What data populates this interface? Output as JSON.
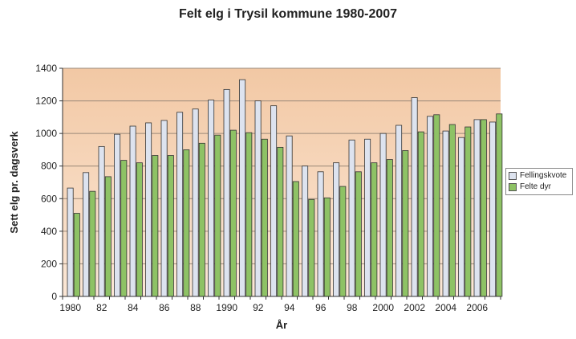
{
  "chart_data": {
    "type": "bar",
    "title": "Felt elg i Trysil kommune 1980-2007",
    "xlabel": "År",
    "ylabel": "Sett elg pr. dagsverk",
    "ylim": [
      0,
      1400
    ],
    "yticks": [
      0,
      200,
      400,
      600,
      800,
      1000,
      1200,
      1400
    ],
    "grid": true,
    "legend_position": "right",
    "categories": [
      "1980",
      "1981",
      "1982",
      "1983",
      "1984",
      "1985",
      "1986",
      "1987",
      "1988",
      "1989",
      "1990",
      "1991",
      "1992",
      "1993",
      "1994",
      "1995",
      "1996",
      "1997",
      "1998",
      "1999",
      "2000",
      "2001",
      "2002",
      "2003",
      "2004",
      "2005",
      "2006",
      "2007"
    ],
    "xtick_labels": [
      "1980",
      "",
      "82",
      "",
      "84",
      "",
      "86",
      "",
      "88",
      "",
      "1990",
      "",
      "92",
      "",
      "94",
      "",
      "96",
      "",
      "98",
      "",
      "2000",
      "",
      "2002",
      "",
      "2004",
      "",
      "2006",
      ""
    ],
    "series": [
      {
        "name": "Fellingskvote",
        "color": "#dde3ef",
        "values": [
          665,
          760,
          920,
          995,
          1045,
          1065,
          1080,
          1130,
          1150,
          1205,
          1270,
          1330,
          1200,
          1170,
          985,
          800,
          765,
          820,
          960,
          965,
          1000,
          1050,
          1220,
          1105,
          1015,
          975,
          1085,
          1070
        ]
      },
      {
        "name": "Felte dyr",
        "color": "#8ec265",
        "values": [
          510,
          645,
          735,
          835,
          820,
          865,
          865,
          900,
          940,
          990,
          1020,
          1005,
          965,
          915,
          705,
          595,
          605,
          675,
          765,
          820,
          840,
          895,
          1010,
          1115,
          1055,
          1040,
          1085,
          1120
        ]
      }
    ]
  }
}
